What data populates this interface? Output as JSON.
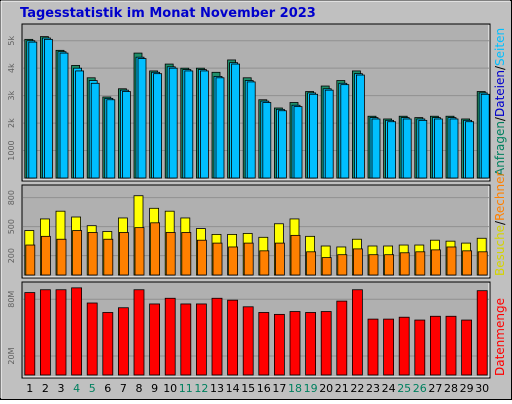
{
  "title": "Tagesstatistik im Monat November 2023",
  "colors": {
    "page_bg": "#C0C0C0",
    "plot_bg": "#B0B0B0",
    "title": "#0000CC",
    "anfragen": "#00805F",
    "dateien": "#00C8FF",
    "seiten": "#00BFFF",
    "besuche": "#FFFF00",
    "rechner": "#FF8000",
    "datenmenge": "#FF0000",
    "weekend_label": "#00805F",
    "weekday_label": "#000000"
  },
  "legends": {
    "top": [
      {
        "text": "Anfragen",
        "color": "#00805F"
      },
      {
        "text": "/",
        "color": "#000000"
      },
      {
        "text": "Dateien",
        "color": "#0000CC"
      },
      {
        "text": "/",
        "color": "#000000"
      },
      {
        "text": "Seiten",
        "color": "#00BFFF"
      }
    ],
    "middle": [
      {
        "text": "Besuche",
        "color": "#D4D400"
      },
      {
        "text": "/",
        "color": "#000000"
      },
      {
        "text": "Rechner",
        "color": "#FF8000"
      }
    ],
    "bottom": [
      {
        "text": "Datenmenge",
        "color": "#FF0000"
      }
    ]
  },
  "chart_data": {
    "type": "bar",
    "title": "Tagesstatistik im Monat November 2023",
    "categories": [
      "1",
      "2",
      "3",
      "4",
      "5",
      "6",
      "7",
      "8",
      "9",
      "10",
      "11",
      "12",
      "13",
      "14",
      "15",
      "16",
      "17",
      "18",
      "19",
      "20",
      "21",
      "22",
      "23",
      "24",
      "25",
      "26",
      "27",
      "28",
      "29",
      "30"
    ],
    "weekend_days": [
      "4",
      "5",
      "11",
      "12",
      "18",
      "19",
      "25",
      "26"
    ],
    "panels": [
      {
        "name": "requests",
        "ylim": [
          0,
          5500
        ],
        "ticks": [
          1000,
          2000,
          3000,
          4000,
          5000
        ],
        "tick_labels": [
          "1000",
          "2k",
          "3k",
          "4k",
          "5k"
        ],
        "series": [
          {
            "name": "Anfragen",
            "values": [
              5050,
              5150,
              4650,
              4100,
              3650,
              2950,
              3250,
              4550,
              3900,
              4150,
              4000,
              4000,
              3850,
              4300,
              3650,
              2850,
              2550,
              2750,
              3150,
              3350,
              3550,
              3900,
              2250,
              2150,
              2250,
              2200,
              2250,
              2250,
              2150,
              3150
            ]
          },
          {
            "name": "Dateien",
            "values": [
              5000,
              5100,
              4600,
              4000,
              3550,
              2900,
              3200,
              4400,
              3850,
              4050,
              3950,
              3950,
              3700,
              4200,
              3550,
              2800,
              2500,
              2650,
              3100,
              3250,
              3450,
              3800,
              2200,
              2100,
              2200,
              2150,
              2200,
              2200,
              2100,
              3100
            ]
          },
          {
            "name": "Seiten",
            "values": [
              4950,
              5050,
              4550,
              3900,
              3450,
              2850,
              3150,
              4350,
              3800,
              4000,
              3900,
              3900,
              3650,
              4150,
              3500,
              2750,
              2450,
              2600,
              3050,
              3200,
              3400,
              3750,
              2150,
              2050,
              2150,
              2100,
              2150,
              2150,
              2050,
              3050
            ]
          }
        ]
      },
      {
        "name": "visits",
        "ylim": [
          0,
          900
        ],
        "ticks": [
          200,
          500,
          800
        ],
        "tick_labels": [
          "200",
          "500",
          "800"
        ],
        "series": [
          {
            "name": "Besuche",
            "values": [
              460,
              580,
              660,
              600,
              510,
              450,
              590,
              820,
              690,
              660,
              590,
              480,
              420,
              420,
              430,
              390,
              530,
              580,
              400,
              300,
              290,
              370,
              300,
              300,
              310,
              310,
              360,
              350,
              330,
              380
            ]
          },
          {
            "name": "Rechner",
            "values": [
              310,
              400,
              370,
              460,
              440,
              370,
              440,
              490,
              540,
              440,
              440,
              360,
              330,
              290,
              330,
              250,
              330,
              410,
              240,
              180,
              210,
              270,
              210,
              210,
              230,
              240,
              260,
              290,
              250,
              240
            ]
          }
        ]
      },
      {
        "name": "traffic",
        "ylim": [
          0,
          95
        ],
        "ticks": [
          20,
          80
        ],
        "tick_labels": [
          "20M",
          "80M"
        ],
        "series": [
          {
            "name": "Datenmenge",
            "values": [
              87,
              90,
              90,
              92,
              76,
              66,
              71,
              90,
              75,
              81,
              75,
              75,
              81,
              79,
              72,
              66,
              64,
              67,
              66,
              67,
              78,
              90,
              59,
              59,
              61,
              58,
              62,
              62,
              58,
              89
            ]
          }
        ]
      }
    ]
  }
}
